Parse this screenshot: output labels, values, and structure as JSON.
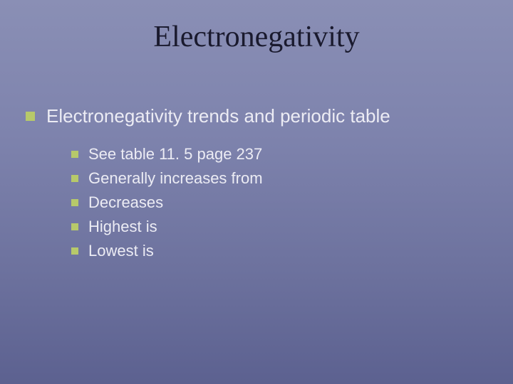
{
  "slide": {
    "title": "Electronegativity",
    "title_font": "Georgia",
    "title_fontsize": 42,
    "title_color": "#1a1a2e",
    "background_gradient": [
      "#8a8fb5",
      "#7e83ad",
      "#6d729e",
      "#5c6190"
    ],
    "bullet_color": "#b7c96a",
    "text_color": "#ececf4",
    "body_font": "Verdana",
    "main_bullet_fontsize": 26,
    "sub_bullet_fontsize": 22,
    "main_bullet": "Electronegativity trends and periodic table",
    "sub_bullets": [
      "See table 11. 5 page 237",
      "Generally increases from",
      "Decreases",
      "Highest is",
      "Lowest is"
    ]
  }
}
